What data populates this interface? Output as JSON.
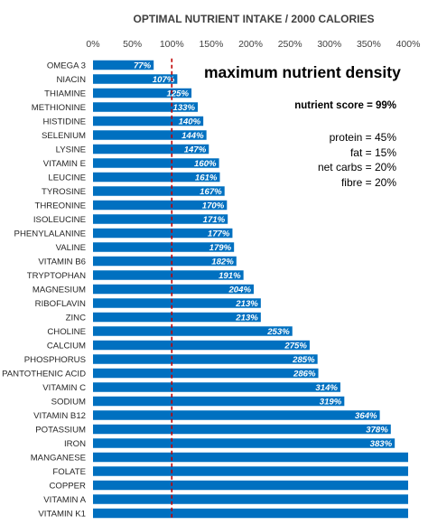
{
  "chart_data": {
    "type": "bar",
    "orientation": "horizontal",
    "title": "OPTIMAL NUTRIENT INTAKE / 2000 CALORIES",
    "xlim": [
      0,
      400
    ],
    "xticks": [
      "0%",
      "50%",
      "100%",
      "150%",
      "200%",
      "250%",
      "300%",
      "350%",
      "400%"
    ],
    "grid": false,
    "reference_line": 100,
    "bar_color": "#0070c0",
    "reference_line_color": "#c00000",
    "categories": [
      "OMEGA 3",
      "NIACIN",
      "THIAMINE",
      "METHIONINE",
      "HISTIDINE",
      "SELENIUM",
      "LYSINE",
      "VITAMIN E",
      "LEUCINE",
      "TYROSINE",
      "THREONINE",
      "ISOLEUCINE",
      "PHENYLALANINE",
      "VALINE",
      "VITAMIN B6",
      "TRYPTOPHAN",
      "MAGNESIUM",
      "RIBOFLAVIN",
      "ZINC",
      "CHOLINE",
      "CALCIUM",
      "PHOSPHORUS",
      "PANTOTHENIC ACID",
      "VITAMIN C",
      "SODIUM",
      "VITAMIN B12",
      "POTASSIUM",
      "IRON",
      "MANGANESE",
      "FOLATE",
      "COPPER",
      "VITAMIN A",
      "VITAMIN K1"
    ],
    "values": [
      77,
      107,
      125,
      133,
      140,
      144,
      147,
      160,
      161,
      167,
      170,
      171,
      177,
      179,
      182,
      191,
      204,
      213,
      213,
      253,
      275,
      285,
      286,
      314,
      319,
      364,
      378,
      383,
      400,
      400,
      400,
      400,
      400
    ],
    "data_labels": [
      "77%",
      "107%",
      "125%",
      "133%",
      "140%",
      "144%",
      "147%",
      "160%",
      "161%",
      "167%",
      "170%",
      "171%",
      "177%",
      "179%",
      "182%",
      "191%",
      "204%",
      "213%",
      "213%",
      "253%",
      "275%",
      "285%",
      "286%",
      "314%",
      "319%",
      "364%",
      "378%",
      "383%",
      "",
      "",
      "",
      "",
      ""
    ]
  },
  "panel": {
    "heading": "maximum nutrient density",
    "score": "nutrient score = 99%",
    "macros": [
      "protein = 45%",
      "fat = 15%",
      "net carbs = 20%",
      "fibre = 20%"
    ]
  }
}
